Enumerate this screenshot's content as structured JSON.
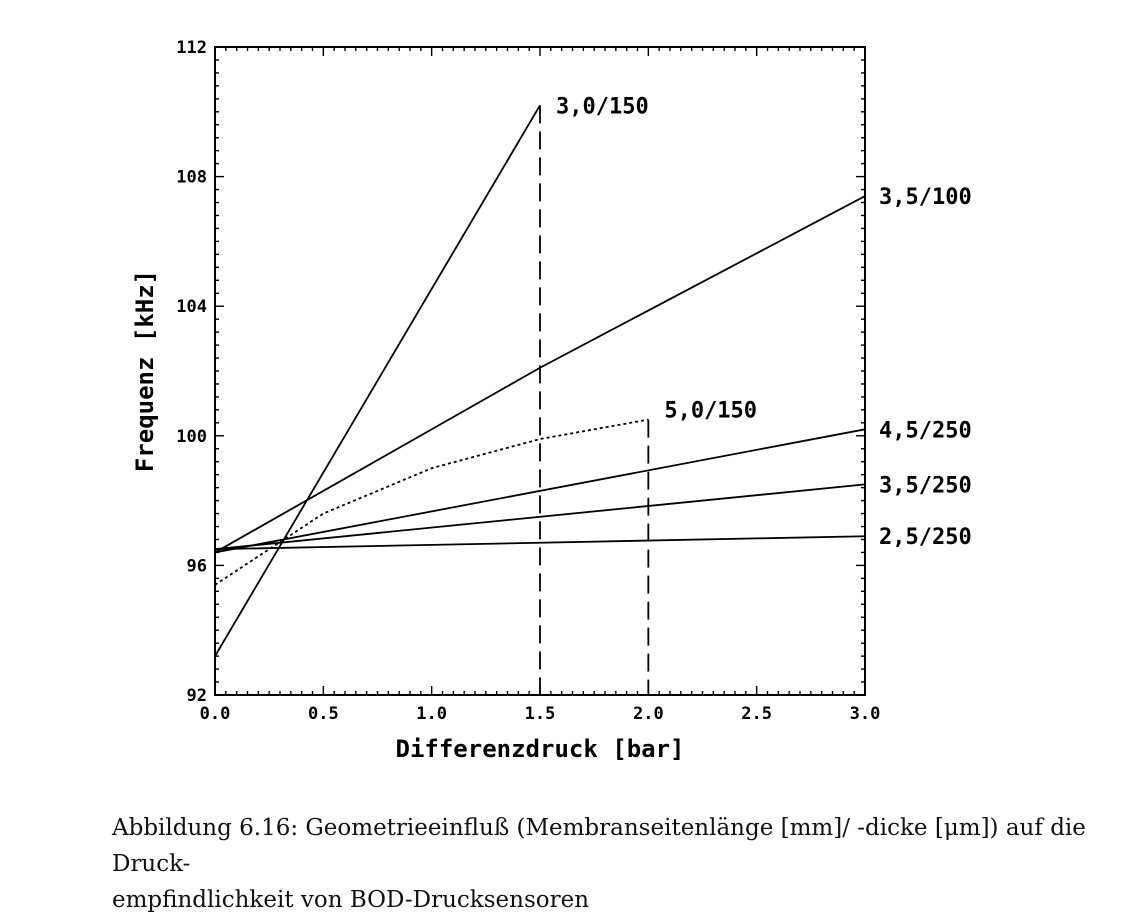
{
  "chart_data": {
    "type": "line",
    "xlabel": "Differenzdruck [bar]",
    "ylabel": "Frequenz [kHz]",
    "xlim": [
      0,
      3
    ],
    "ylim": [
      92,
      112
    ],
    "xticks": [
      "0.0",
      "0.5",
      "1.0",
      "1.5",
      "2.0",
      "2.5",
      "3.0"
    ],
    "yticks": [
      "92",
      "96",
      "100",
      "104",
      "108",
      "112"
    ],
    "grid": false,
    "series": [
      {
        "name": "3,0/150",
        "style": "solid",
        "x": [
          0,
          1.5
        ],
        "y": [
          93.2,
          110.2
        ],
        "end_drop": true
      },
      {
        "name": "3,5/100",
        "style": "solid",
        "x": [
          0,
          1.5,
          3.0
        ],
        "y": [
          96.4,
          102.1,
          107.4
        ]
      },
      {
        "name": "5,0/150",
        "style": "dotted",
        "x": [
          0,
          0.5,
          1.0,
          1.5,
          2.0
        ],
        "y": [
          95.4,
          97.6,
          99.0,
          99.9,
          100.5
        ],
        "end_drop": true
      },
      {
        "name": "4,5/250",
        "style": "solid",
        "x": [
          0,
          3.0
        ],
        "y": [
          96.4,
          100.2
        ]
      },
      {
        "name": "3,5/250",
        "style": "solid",
        "x": [
          0,
          3.0
        ],
        "y": [
          96.5,
          98.5
        ]
      },
      {
        "name": "2,5/250",
        "style": "solid",
        "x": [
          0,
          3.0
        ],
        "y": [
          96.5,
          96.9
        ]
      }
    ]
  },
  "caption": {
    "line1": "Abbildung 6.16: Geometrieeinfluß (Membranseitenlänge [mm]/ -dicke [μm]) auf die Druck-",
    "line2": "empfindlichkeit von BOD-Drucksensoren"
  }
}
